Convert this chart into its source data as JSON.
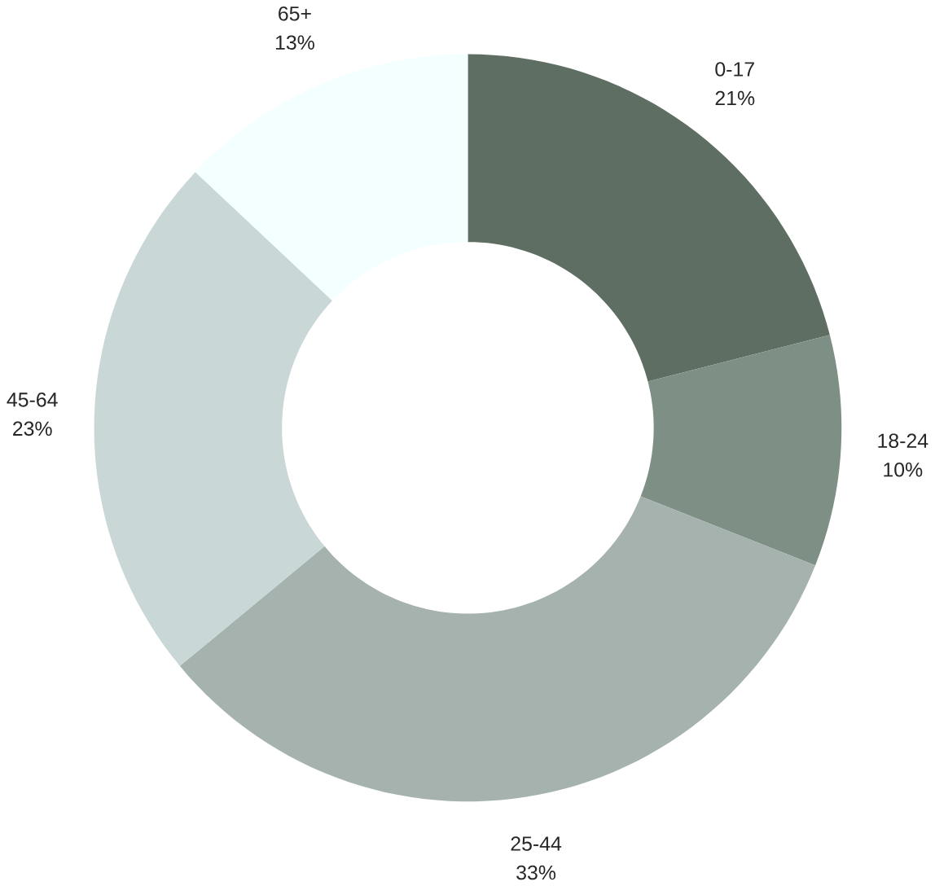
{
  "chart_data": {
    "type": "donut",
    "categories": [
      "0-17",
      "18-24",
      "25-44",
      "45-64",
      "65+"
    ],
    "values": [
      21,
      10,
      33,
      23,
      13
    ],
    "value_labels": [
      "21%",
      "10%",
      "33%",
      "23%",
      "13%"
    ],
    "colors": [
      "#5f6e62",
      "#7e8f86",
      "#a5b2ae",
      "#c9d7d6",
      "#f4ffff"
    ]
  }
}
